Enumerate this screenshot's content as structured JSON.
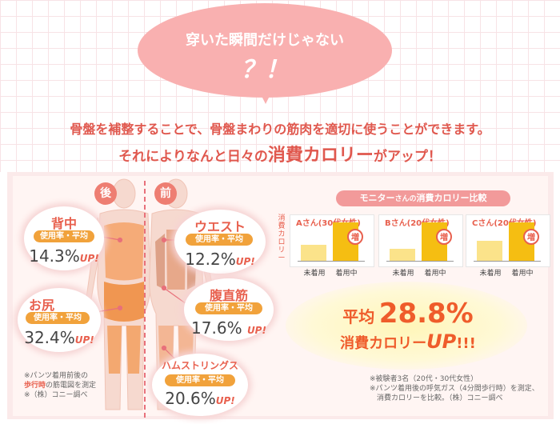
{
  "header": {
    "bubble_title": "穿いた瞬間だけじゃない",
    "bubble_mark": "？！",
    "lead_line1": "骨盤を補整することで、骨盤まわりの筋肉を適切に使うことができます。",
    "lead_line2_pre": "それによりなんと日々の",
    "lead_line2_em": "消費カロリー",
    "lead_line2_post": "がアップ！"
  },
  "body_figure": {
    "back_tag": "後",
    "front_tag": "前"
  },
  "muscles": [
    {
      "name": "背中",
      "pill": "使用率・平均",
      "value": "14.3%",
      "up": "UP!"
    },
    {
      "name": "お尻",
      "pill": "使用率・平均",
      "value": "32.4%",
      "up": "UP!"
    },
    {
      "name": "ウエスト",
      "pill": "使用率・平均",
      "value": "12.2%",
      "up": "UP!"
    },
    {
      "name": "腹直筋",
      "pill": "使用率・平均",
      "value": "17.6%",
      "up": "UP!"
    },
    {
      "name": "ハムストリングス",
      "pill": "使用率・平均",
      "value": "20.6%",
      "up": "UP!"
    }
  ],
  "left_note": {
    "line1": "※パンツ着用前後の",
    "line2_hl": "歩行時",
    "line2_rest": "の筋電図を測定",
    "line3": "※（株）コニー調べ"
  },
  "comparison": {
    "title_main": "モニター",
    "title_small": "さんの",
    "title_rest": "消費カロリー比較",
    "ylabel": "消費カロリー",
    "increase_icon_label": "増",
    "colors": {
      "before": "#fbe38a",
      "after": "#f5be12"
    },
    "chart_data": {
      "type": "bar",
      "categories": [
        "未着用",
        "着用中"
      ],
      "series": [
        {
          "name": "Aさん(30代女性)",
          "values": [
            0.42,
            1.0
          ]
        },
        {
          "name": "Bさん(20代女性)",
          "values": [
            0.32,
            1.0
          ]
        },
        {
          "name": "Cさん(20代女性)",
          "values": [
            0.52,
            1.0
          ]
        }
      ]
    }
  },
  "average": {
    "label": "平均",
    "value": "28.8%",
    "line2_pre": "消費カロリー",
    "line2_up": "UP",
    "line2_post": "!!!"
  },
  "right_note": {
    "line1": "※被験者3名（20代・30代女性）",
    "line2": "※パンツ着用後の呼気ガス（4分間歩行時）を測定、",
    "line3": "消費カロリーを比較。（株）コニー調べ"
  }
}
